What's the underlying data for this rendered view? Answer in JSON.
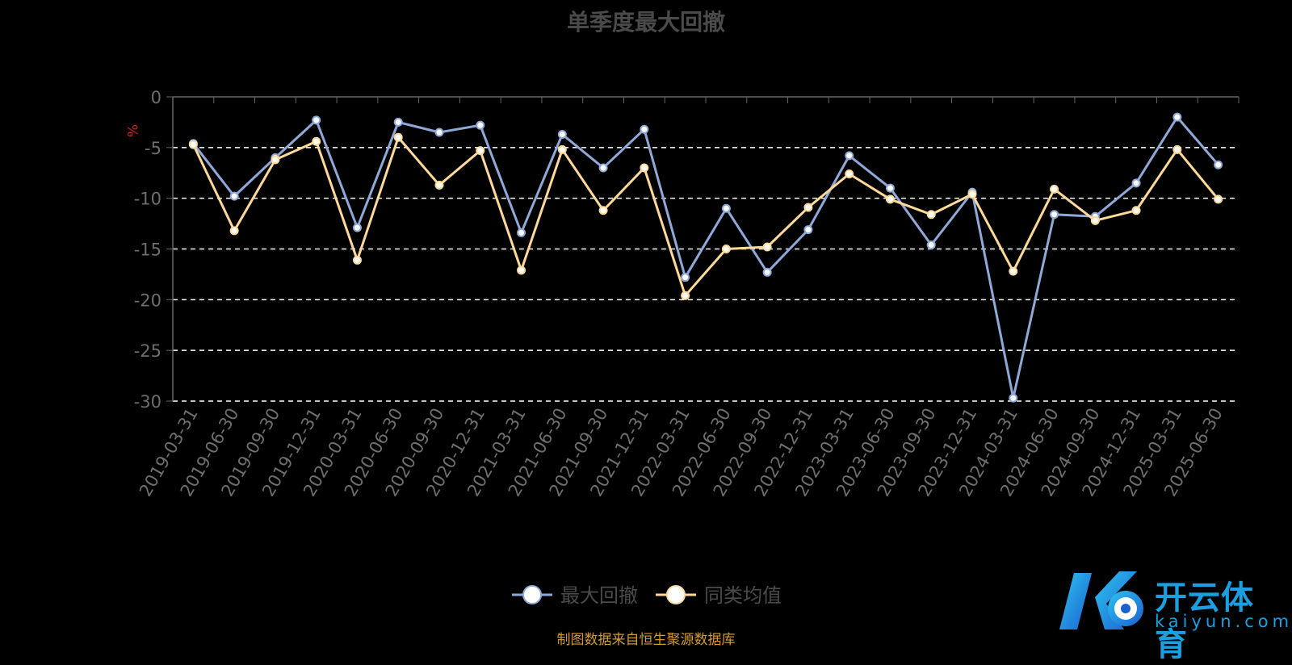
{
  "chart_data": {
    "type": "line",
    "title": "单季度最大回撤",
    "ylabel": "%",
    "ylim": [
      -30,
      0
    ],
    "yticks": [
      "0",
      "-5",
      "-10",
      "-15",
      "-20",
      "-25",
      "-30"
    ],
    "grid": true,
    "legend_position": "bottom-center",
    "categories": [
      "2019-03-31",
      "2019-06-30",
      "2019-09-30",
      "2019-12-31",
      "2020-03-31",
      "2020-06-30",
      "2020-09-30",
      "2020-12-31",
      "2021-03-31",
      "2021-06-30",
      "2021-09-30",
      "2021-12-31",
      "2022-03-31",
      "2022-06-30",
      "2022-09-30",
      "2022-12-31",
      "2023-03-31",
      "2023-06-30",
      "2023-09-30",
      "2023-12-31",
      "2024-03-31",
      "2024-06-30",
      "2024-09-30",
      "2024-12-31",
      "2025-03-31",
      "2025-06-30"
    ],
    "series": [
      {
        "name": "最大回撤",
        "color": "#8fa8d8",
        "values": [
          -4.6,
          -9.8,
          -6.0,
          -2.3,
          -12.9,
          -2.5,
          -3.5,
          -2.8,
          -13.4,
          -3.7,
          -7.0,
          -3.2,
          -17.8,
          -11.0,
          -17.3,
          -13.1,
          -5.8,
          -9.0,
          -14.6,
          -9.4,
          -29.7,
          -11.6,
          -11.8,
          -8.5,
          -2.0,
          -6.7
        ]
      },
      {
        "name": "同类均值",
        "color": "#ffd99a",
        "values": [
          -4.7,
          -13.2,
          -6.2,
          -4.4,
          -16.1,
          -4.0,
          -8.7,
          -5.3,
          -17.1,
          -5.2,
          -11.2,
          -7.0,
          -19.6,
          -15.0,
          -14.8,
          -10.9,
          -7.6,
          -10.1,
          -11.6,
          -9.6,
          -17.2,
          -9.1,
          -12.2,
          -11.2,
          -5.2,
          -10.1
        ]
      }
    ],
    "source_note": "制图数据来自恒生聚源数据库"
  },
  "watermark": {
    "cn": "开云体育",
    "en": "kaiyun.com"
  }
}
